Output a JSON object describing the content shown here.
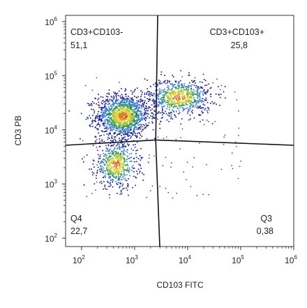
{
  "chart_data": {
    "type": "scatter",
    "subtype": "flow-cytometry density dot plot with quadrant gates",
    "xlabel": "CD103 FITC",
    "ylabel": "CD3 PB",
    "x_scale": "log",
    "y_scale": "log",
    "xlim": [
      50,
      1000000
    ],
    "ylim": [
      70,
      1300000
    ],
    "x_ticks": [
      {
        "value": 100,
        "base": "10",
        "exp": "2"
      },
      {
        "value": 1000,
        "base": "10",
        "exp": "3"
      },
      {
        "value": 10000,
        "base": "10",
        "exp": "4"
      },
      {
        "value": 100000,
        "base": "10",
        "exp": "5"
      },
      {
        "value": 1000000,
        "base": "10",
        "exp": "6"
      }
    ],
    "y_ticks": [
      {
        "value": 100,
        "base": "10",
        "exp": "2"
      },
      {
        "value": 1000,
        "base": "10",
        "exp": "3"
      },
      {
        "value": 10000,
        "base": "10",
        "exp": "4"
      },
      {
        "value": 100000,
        "base": "10",
        "exp": "5"
      },
      {
        "value": 1000000,
        "base": "10",
        "exp": "6"
      }
    ],
    "quadrants": [
      {
        "name": "CD3+CD103-",
        "percent": "51,1",
        "position": "top-left"
      },
      {
        "name": "CD3+CD103+",
        "percent": "25,8",
        "position": "top-right"
      },
      {
        "name": "Q4",
        "percent": "22,7",
        "position": "bottom-left"
      },
      {
        "name": "Q3",
        "percent": "0,38",
        "position": "bottom-right"
      }
    ],
    "gate_center": {
      "x": 2500,
      "y": 6500
    },
    "clusters": [
      {
        "center_x": 600,
        "center_y": 18000,
        "spread_log_x": 0.25,
        "spread_log_y": 0.2,
        "n": 1400
      },
      {
        "center_x": 7000,
        "center_y": 40000,
        "spread_log_x": 0.3,
        "spread_log_y": 0.17,
        "n": 750
      },
      {
        "center_x": 450,
        "center_y": 2300,
        "spread_log_x": 0.2,
        "spread_log_y": 0.22,
        "n": 600
      }
    ],
    "density_colors": [
      "#1b1fae",
      "#3b7dd8",
      "#2f9a55",
      "#a6c73a",
      "#e6d22f",
      "#e07a2a"
    ],
    "grid": false
  }
}
